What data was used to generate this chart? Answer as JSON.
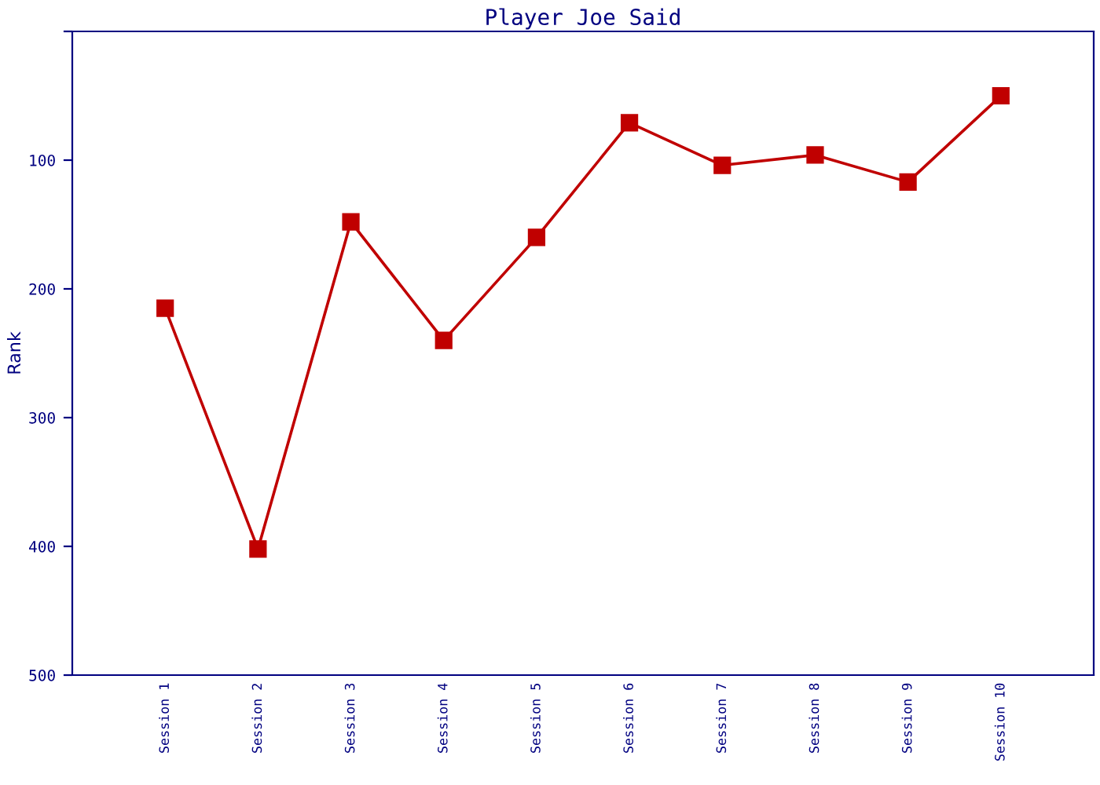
{
  "chart_data": {
    "type": "line",
    "title": "Player Joe Said",
    "ylabel": "Rank",
    "categories": [
      "Session 1",
      "Session 2",
      "Session 3",
      "Session 4",
      "Session 5",
      "Session 6",
      "Session 7",
      "Session 8",
      "Session 9",
      "Session 10"
    ],
    "series": [
      {
        "color": "#c00000",
        "values": [
          215,
          402,
          148,
          240,
          160,
          71,
          104,
          96,
          117,
          50
        ]
      }
    ],
    "ylim": [
      500,
      0
    ],
    "yticks": [
      {
        "value": 0,
        "label": null
      },
      100,
      200,
      300,
      400,
      500
    ],
    "grid": false,
    "marker": "square",
    "line_style": "solid"
  }
}
